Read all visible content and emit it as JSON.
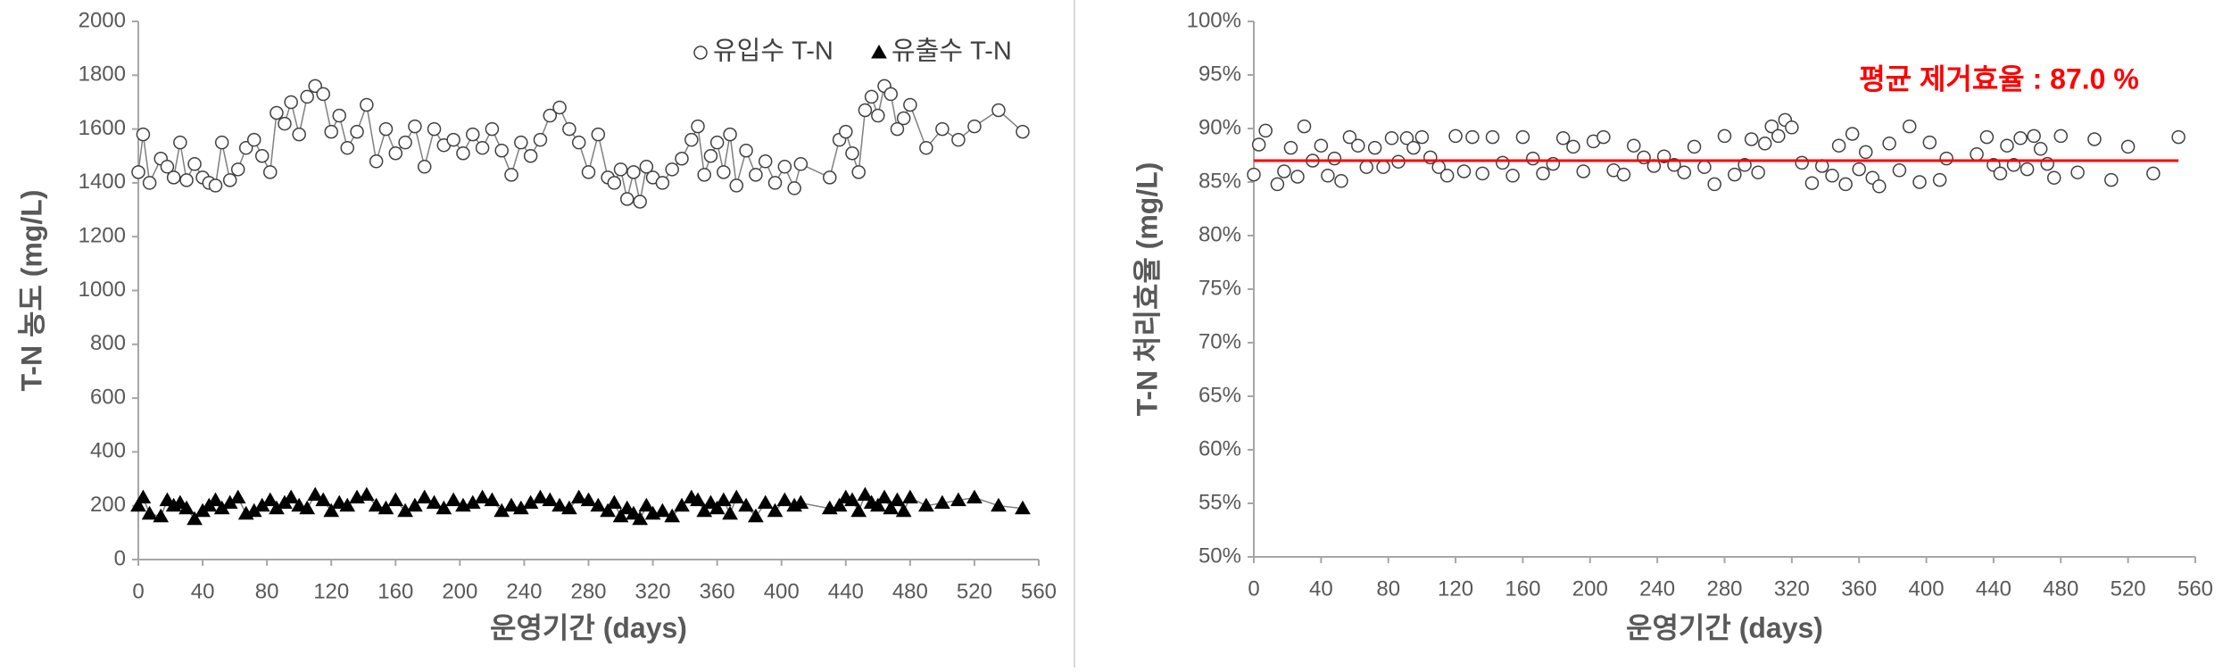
{
  "chart_data": [
    {
      "type": "line",
      "ylabel": "T-N 농도 (mg/L)",
      "xlabel": "운영기간 (days)",
      "xlim": [
        0,
        560
      ],
      "xticks": [
        0,
        40,
        80,
        120,
        160,
        200,
        240,
        280,
        320,
        360,
        400,
        440,
        480,
        520,
        560
      ],
      "ylim": [
        0,
        2000
      ],
      "yticks": [
        0,
        200,
        400,
        600,
        800,
        1000,
        1200,
        1400,
        1600,
        1800,
        2000
      ],
      "legend": "top-right",
      "x": [
        0,
        3,
        7,
        14,
        18,
        22,
        26,
        30,
        35,
        40,
        44,
        48,
        52,
        57,
        62,
        67,
        72,
        77,
        82,
        86,
        91,
        95,
        100,
        105,
        110,
        115,
        120,
        125,
        130,
        136,
        142,
        148,
        154,
        160,
        166,
        172,
        178,
        184,
        190,
        196,
        202,
        208,
        214,
        220,
        226,
        232,
        238,
        244,
        250,
        256,
        262,
        268,
        274,
        280,
        286,
        292,
        296,
        300,
        304,
        308,
        312,
        316,
        320,
        326,
        332,
        338,
        344,
        348,
        352,
        356,
        360,
        364,
        368,
        372,
        378,
        384,
        390,
        396,
        402,
        408,
        412,
        430,
        436,
        440,
        444,
        448,
        452,
        456,
        460,
        464,
        468,
        472,
        476,
        480,
        490,
        500,
        510,
        520,
        535,
        550
      ],
      "series": [
        {
          "name": "유입수 T-N",
          "color": "#ffffff",
          "marker": "circle",
          "values": [
            1440,
            1580,
            1400,
            1490,
            1460,
            1420,
            1550,
            1410,
            1470,
            1420,
            1400,
            1390,
            1550,
            1410,
            1450,
            1530,
            1560,
            1500,
            1440,
            1660,
            1620,
            1700,
            1580,
            1720,
            1760,
            1730,
            1590,
            1650,
            1530,
            1590,
            1690,
            1480,
            1600,
            1510,
            1550,
            1610,
            1460,
            1600,
            1540,
            1560,
            1510,
            1580,
            1530,
            1600,
            1520,
            1430,
            1550,
            1500,
            1560,
            1650,
            1680,
            1600,
            1550,
            1440,
            1580,
            1420,
            1400,
            1450,
            1340,
            1440,
            1330,
            1460,
            1420,
            1400,
            1450,
            1490,
            1560,
            1610,
            1430,
            1500,
            1550,
            1440,
            1580,
            1390,
            1520,
            1430,
            1480,
            1400,
            1460,
            1380,
            1470,
            1420,
            1560,
            1590,
            1510,
            1440,
            1670,
            1720,
            1650,
            1760,
            1730,
            1600,
            1640,
            1690,
            1530,
            1600,
            1560,
            1610,
            1670,
            1590
          ]
        },
        {
          "name": "유출수 T-N",
          "color": "#000000",
          "marker": "triangle",
          "values": [
            200,
            230,
            170,
            160,
            220,
            200,
            210,
            190,
            150,
            180,
            200,
            220,
            190,
            210,
            230,
            170,
            180,
            200,
            220,
            190,
            210,
            230,
            200,
            190,
            240,
            220,
            180,
            210,
            200,
            230,
            240,
            200,
            190,
            220,
            180,
            200,
            230,
            210,
            190,
            220,
            200,
            210,
            230,
            220,
            180,
            200,
            190,
            210,
            230,
            220,
            200,
            190,
            230,
            220,
            200,
            180,
            210,
            160,
            190,
            170,
            150,
            200,
            170,
            180,
            160,
            200,
            230,
            220,
            180,
            210,
            190,
            220,
            170,
            230,
            200,
            160,
            210,
            180,
            220,
            200,
            210,
            190,
            200,
            230,
            220,
            180,
            240,
            210,
            200,
            230,
            190,
            220,
            180,
            230,
            200,
            210,
            220,
            230,
            200,
            190
          ]
        }
      ]
    },
    {
      "type": "scatter",
      "ylabel": "T-N 처리효율 (mg/L)",
      "xlabel": "운영기간 (days)",
      "xlim": [
        0,
        560
      ],
      "xticks": [
        0,
        40,
        80,
        120,
        160,
        200,
        240,
        280,
        320,
        360,
        400,
        440,
        480,
        520,
        560
      ],
      "ylim": [
        50,
        100
      ],
      "yticks": [
        {
          "value": 50,
          "label": "50%"
        },
        {
          "value": 55,
          "label": "55%"
        },
        {
          "value": 60,
          "label": "60%"
        },
        {
          "value": 65,
          "label": "65%"
        },
        {
          "value": 70,
          "label": "70%"
        },
        {
          "value": 75,
          "label": "75%"
        },
        {
          "value": 80,
          "label": "80%"
        },
        {
          "value": 85,
          "label": "85%"
        },
        {
          "value": 90,
          "label": "90%"
        },
        {
          "value": 95,
          "label": "95%"
        },
        {
          "value": 100,
          "label": "100%"
        }
      ],
      "color": "#ffffff",
      "mean": 87.0,
      "mean_color": "#ff0000",
      "annotation": "평균 제거효율 : 87.0 %",
      "x": [
        0,
        3,
        7,
        14,
        18,
        22,
        26,
        30,
        35,
        40,
        44,
        48,
        52,
        57,
        62,
        67,
        72,
        77,
        82,
        86,
        91,
        95,
        100,
        105,
        110,
        115,
        120,
        125,
        130,
        136,
        142,
        148,
        154,
        160,
        166,
        172,
        178,
        184,
        190,
        196,
        202,
        208,
        214,
        220,
        226,
        232,
        238,
        244,
        250,
        256,
        262,
        268,
        274,
        280,
        286,
        292,
        296,
        300,
        304,
        308,
        312,
        316,
        320,
        326,
        332,
        338,
        344,
        348,
        352,
        356,
        360,
        364,
        368,
        372,
        378,
        384,
        390,
        396,
        402,
        408,
        412,
        430,
        436,
        440,
        444,
        448,
        452,
        456,
        460,
        464,
        468,
        472,
        476,
        480,
        490,
        500,
        510,
        520,
        535,
        550
      ],
      "values": [
        85.7,
        88.5,
        89.8,
        84.8,
        86.0,
        88.2,
        85.5,
        90.2,
        87.0,
        88.4,
        85.6,
        87.2,
        85.1,
        89.2,
        88.4,
        86.4,
        88.2,
        86.4,
        89.1,
        86.9,
        89.1,
        88.2,
        89.2,
        87.3,
        86.4,
        85.6,
        89.3,
        86.0,
        89.2,
        85.8,
        89.2,
        86.8,
        85.6,
        89.2,
        87.2,
        85.8,
        86.7,
        89.1,
        88.3,
        86.0,
        88.8,
        89.2,
        86.1,
        85.7,
        88.4,
        87.3,
        86.5,
        87.4,
        86.6,
        85.9,
        88.3,
        86.4,
        84.8,
        89.3,
        85.7,
        86.6,
        89.0,
        85.9,
        88.6,
        90.2,
        89.3,
        90.8,
        90.1,
        86.8,
        84.9,
        86.5,
        85.6,
        88.4,
        84.8,
        89.5,
        86.2,
        87.8,
        85.4,
        84.6,
        88.6,
        86.1,
        90.2,
        85.0,
        88.7,
        85.2,
        87.2,
        87.6,
        89.2,
        86.6,
        85.8,
        88.4,
        86.6,
        89.1,
        86.2,
        89.3,
        88.1,
        86.7,
        85.4,
        89.3,
        85.9,
        89.0,
        85.2,
        88.3,
        85.8,
        89.2
      ]
    }
  ]
}
